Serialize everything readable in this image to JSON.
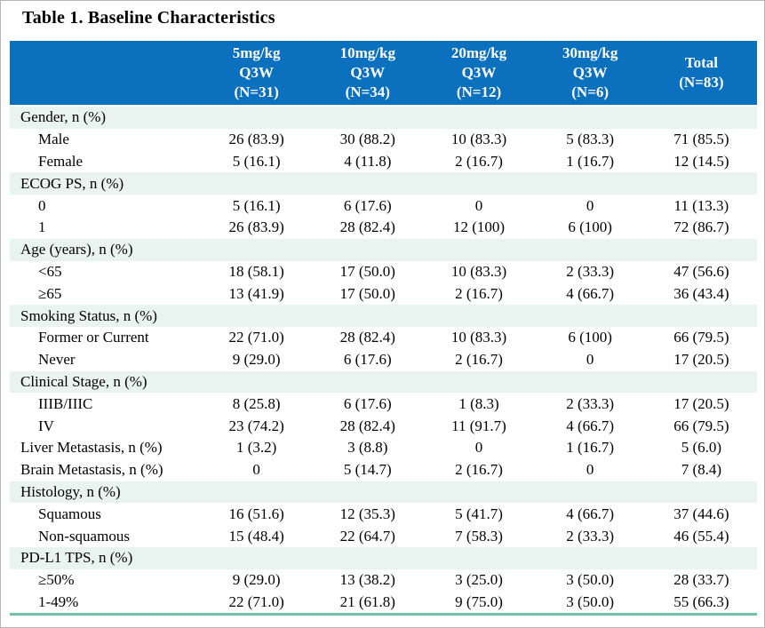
{
  "title": "Table 1. Baseline Characteristics",
  "colors": {
    "header_bg": "#0B71BE",
    "header_text": "#FFFFFF",
    "section_row_bg": "#E9F3EF",
    "bottom_rule": "#72C0AC",
    "body_text": "#000000"
  },
  "table": {
    "columns": [
      {
        "lines": [
          "5mg/kg",
          "Q3W",
          "(N=31)"
        ]
      },
      {
        "lines": [
          "10mg/kg",
          "Q3W",
          "(N=34)"
        ]
      },
      {
        "lines": [
          "20mg/kg",
          "Q3W",
          "(N=12)"
        ]
      },
      {
        "lines": [
          "30mg/kg",
          "Q3W",
          "(N=6)"
        ]
      },
      {
        "lines": [
          "Total",
          "(N=83)"
        ]
      }
    ],
    "rows": [
      {
        "label": "Gender, n (%)",
        "type": "section",
        "values": [
          "",
          "",
          "",
          "",
          ""
        ]
      },
      {
        "label": "Male",
        "type": "sub",
        "values": [
          "26 (83.9)",
          "30 (88.2)",
          "10 (83.3)",
          "5 (83.3)",
          "71 (85.5)"
        ]
      },
      {
        "label": "Female",
        "type": "sub",
        "values": [
          "5 (16.1)",
          "4 (11.8)",
          "2 (16.7)",
          "1 (16.7)",
          "12 (14.5)"
        ]
      },
      {
        "label": "ECOG PS, n (%)",
        "type": "section",
        "values": [
          "",
          "",
          "",
          "",
          ""
        ]
      },
      {
        "label": "0",
        "type": "sub",
        "values": [
          "5 (16.1)",
          "6 (17.6)",
          "0",
          "0",
          "11 (13.3)"
        ]
      },
      {
        "label": "1",
        "type": "sub",
        "values": [
          "26 (83.9)",
          "28 (82.4)",
          "12 (100)",
          "6 (100)",
          "72 (86.7)"
        ]
      },
      {
        "label": "Age (years), n (%)",
        "type": "section",
        "values": [
          "",
          "",
          "",
          "",
          ""
        ]
      },
      {
        "label": "<65",
        "type": "sub",
        "values": [
          "18 (58.1)",
          "17 (50.0)",
          "10 (83.3)",
          "2 (33.3)",
          "47 (56.6)"
        ]
      },
      {
        "label": "≥65",
        "type": "sub",
        "values": [
          "13 (41.9)",
          "17 (50.0)",
          "2 (16.7)",
          "4 (66.7)",
          "36 (43.4)"
        ]
      },
      {
        "label": "Smoking Status, n (%)",
        "type": "section",
        "values": [
          "",
          "",
          "",
          "",
          ""
        ]
      },
      {
        "label": "Former or Current",
        "type": "sub",
        "values": [
          "22 (71.0)",
          "28 (82.4)",
          "10 (83.3)",
          "6 (100)",
          "66 (79.5)"
        ]
      },
      {
        "label": "Never",
        "type": "sub",
        "values": [
          "9 (29.0)",
          "6 (17.6)",
          "2 (16.7)",
          "0",
          "17 (20.5)"
        ]
      },
      {
        "label": "Clinical Stage, n (%)",
        "type": "section",
        "values": [
          "",
          "",
          "",
          "",
          ""
        ]
      },
      {
        "label": "IIIB/IIIC",
        "type": "sub",
        "values": [
          "8 (25.8)",
          "6 (17.6)",
          "1 (8.3)",
          "2 (33.3)",
          "17 (20.5)"
        ]
      },
      {
        "label": "IV",
        "type": "sub",
        "values": [
          "23 (74.2)",
          "28 (82.4)",
          "11 (91.7)",
          "4 (66.7)",
          "66 (79.5)"
        ]
      },
      {
        "label": "Liver Metastasis, n (%)",
        "type": "plain",
        "values": [
          "1 (3.2)",
          "3 (8.8)",
          "0",
          "1 (16.7)",
          "5 (6.0)"
        ]
      },
      {
        "label": "Brain Metastasis, n (%)",
        "type": "plain",
        "values": [
          "0",
          "5 (14.7)",
          "2 (16.7)",
          "0",
          "7 (8.4)"
        ]
      },
      {
        "label": "Histology, n (%)",
        "type": "section",
        "values": [
          "",
          "",
          "",
          "",
          ""
        ]
      },
      {
        "label": "Squamous",
        "type": "sub",
        "values": [
          "16 (51.6)",
          "12 (35.3)",
          "5 (41.7)",
          "4 (66.7)",
          "37 (44.6)"
        ]
      },
      {
        "label": "Non-squamous",
        "type": "sub",
        "values": [
          "15 (48.4)",
          "22 (64.7)",
          "7 (58.3)",
          "2 (33.3)",
          "46 (55.4)"
        ]
      },
      {
        "label": "PD-L1 TPS, n (%)",
        "type": "section",
        "values": [
          "",
          "",
          "",
          "",
          ""
        ]
      },
      {
        "label": "≥50%",
        "type": "sub",
        "values": [
          "9 (29.0)",
          "13 (38.2)",
          "3 (25.0)",
          "3 (50.0)",
          "28 (33.7)"
        ]
      },
      {
        "label": "1-49%",
        "type": "sub",
        "values": [
          "22 (71.0)",
          "21 (61.8)",
          "9 (75.0)",
          "3 (50.0)",
          "55 (66.3)"
        ]
      }
    ]
  }
}
